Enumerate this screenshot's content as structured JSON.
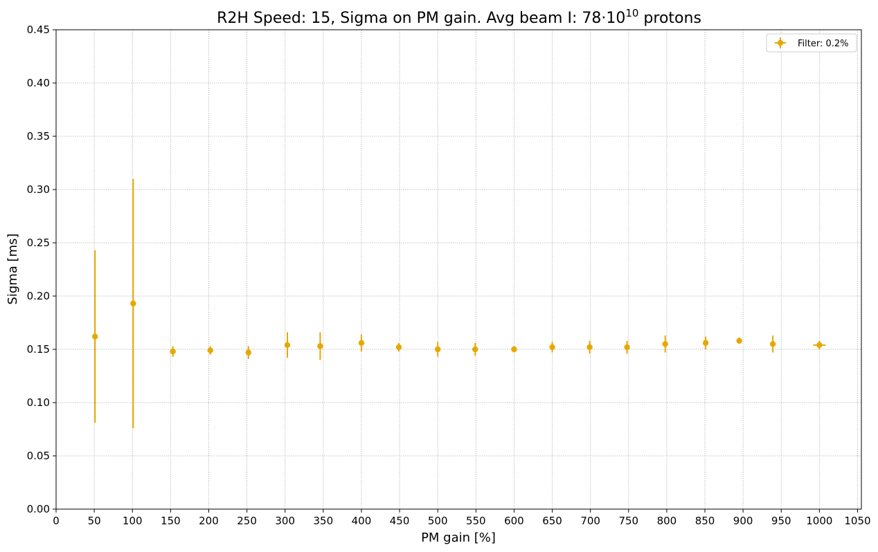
{
  "chart_data": {
    "type": "scatter",
    "title": {
      "prefix": "R2H Speed: 15, Sigma on PM gain. Avg beam I: 78·10",
      "superscript": "10",
      "suffix": " protons"
    },
    "xlabel": "PM gain [%]",
    "ylabel": "Sigma [ms]",
    "xlim": [
      0,
      1055
    ],
    "ylim": [
      0,
      0.45
    ],
    "xticks": [
      0,
      50,
      100,
      150,
      200,
      250,
      300,
      350,
      400,
      450,
      500,
      550,
      600,
      650,
      700,
      750,
      800,
      850,
      900,
      950,
      1000,
      1050
    ],
    "yticks": [
      0.0,
      0.05,
      0.1,
      0.15,
      0.2,
      0.25,
      0.3,
      0.35,
      0.4,
      0.45
    ],
    "ytick_labels": [
      "0.00",
      "0.05",
      "0.10",
      "0.15",
      "0.20",
      "0.25",
      "0.30",
      "0.35",
      "0.40",
      "0.45"
    ],
    "grid": true,
    "legend_position": "top-right",
    "series": [
      {
        "name": "Filter: 0.2%",
        "color": "#e6a800",
        "points": [
          {
            "x": 51,
            "y": 0.162,
            "yerr": 0.081,
            "xerr": 0
          },
          {
            "x": 101,
            "y": 0.193,
            "yerr": 0.117,
            "xerr": 0
          },
          {
            "x": 153,
            "y": 0.148,
            "yerr": 0.005,
            "xerr": 0
          },
          {
            "x": 202,
            "y": 0.149,
            "yerr": 0.004,
            "xerr": 0
          },
          {
            "x": 252,
            "y": 0.147,
            "yerr": 0.006,
            "xerr": 0
          },
          {
            "x": 303,
            "y": 0.154,
            "yerr": 0.012,
            "xerr": 0
          },
          {
            "x": 346,
            "y": 0.153,
            "yerr": 0.013,
            "xerr": 0
          },
          {
            "x": 400,
            "y": 0.156,
            "yerr": 0.008,
            "xerr": 0
          },
          {
            "x": 449,
            "y": 0.152,
            "yerr": 0.004,
            "xerr": 0
          },
          {
            "x": 500,
            "y": 0.15,
            "yerr": 0.007,
            "xerr": 0
          },
          {
            "x": 549,
            "y": 0.15,
            "yerr": 0.006,
            "xerr": 0
          },
          {
            "x": 600,
            "y": 0.15,
            "yerr": 0.003,
            "xerr": 0
          },
          {
            "x": 650,
            "y": 0.152,
            "yerr": 0.005,
            "xerr": 0
          },
          {
            "x": 699,
            "y": 0.152,
            "yerr": 0.006,
            "xerr": 0
          },
          {
            "x": 748,
            "y": 0.152,
            "yerr": 0.006,
            "xerr": 0
          },
          {
            "x": 798,
            "y": 0.155,
            "yerr": 0.008,
            "xerr": 0
          },
          {
            "x": 851,
            "y": 0.156,
            "yerr": 0.006,
            "xerr": 3
          },
          {
            "x": 895,
            "y": 0.158,
            "yerr": 0.003,
            "xerr": 0
          },
          {
            "x": 939,
            "y": 0.155,
            "yerr": 0.008,
            "xerr": 0
          },
          {
            "x": 1000,
            "y": 0.154,
            "yerr": 0.004,
            "xerr": 8
          }
        ]
      }
    ]
  }
}
